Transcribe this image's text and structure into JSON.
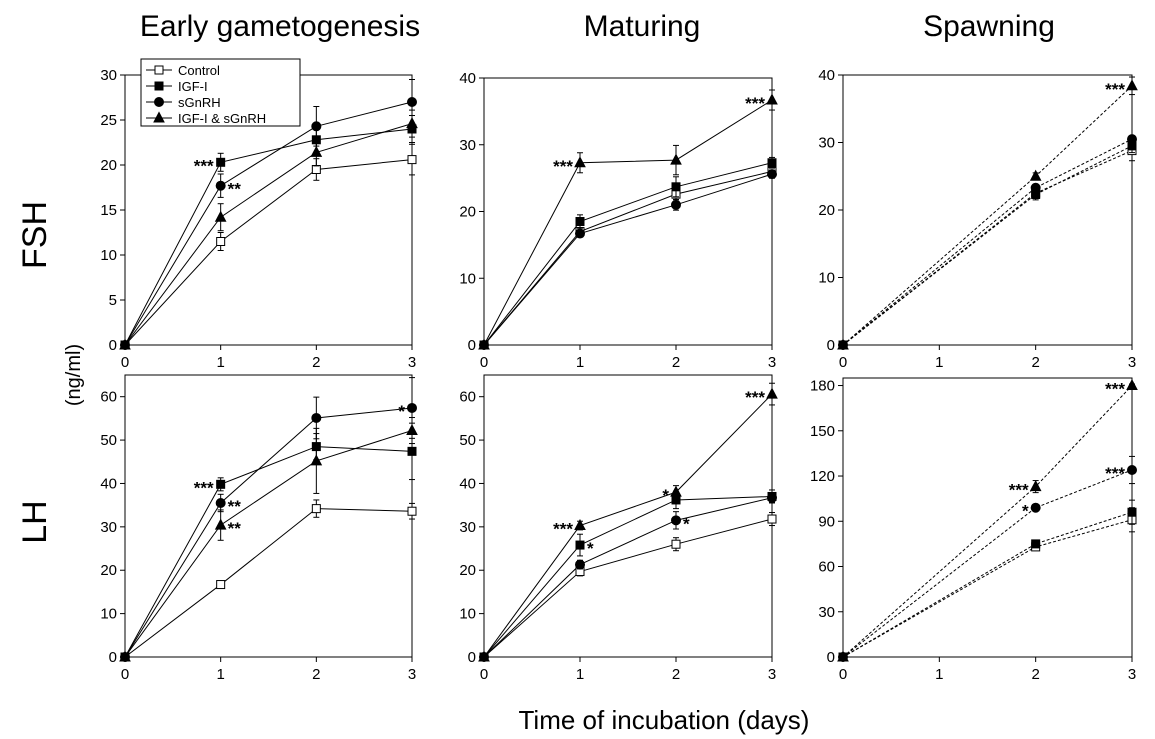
{
  "figure": {
    "column_titles": [
      "Early gametogenesis",
      "Maturing",
      "Spawning"
    ],
    "row_titles": [
      "FSH",
      "LH"
    ],
    "ylabel": "(ng/ml)",
    "xlabel": "Time of incubation (days)"
  },
  "legend": {
    "entries": [
      {
        "label": "Control",
        "marker": "open-square"
      },
      {
        "label": "IGF-I",
        "marker": "filled-square"
      },
      {
        "label": "sGnRH",
        "marker": "filled-circle"
      },
      {
        "label": "IGF-I & sGnRH",
        "marker": "filled-triangle"
      }
    ]
  },
  "chart_data": [
    {
      "type": "line",
      "panel": "FSH - Early gametogenesis",
      "x": [
        0,
        1,
        2,
        3
      ],
      "xlim": [
        0,
        3
      ],
      "ylim": [
        0,
        30
      ],
      "yticks": [
        0,
        5,
        10,
        15,
        20,
        25,
        30
      ],
      "xticks": [
        0,
        1,
        2,
        3
      ],
      "series": [
        {
          "name": "Control",
          "values": [
            0,
            11.5,
            19.5,
            20.6
          ],
          "errors": [
            0,
            1.0,
            1.2,
            1.7
          ]
        },
        {
          "name": "IGF-I",
          "values": [
            0,
            20.3,
            22.8,
            24.0
          ],
          "errors": [
            0,
            1.0,
            1.5,
            1.5
          ]
        },
        {
          "name": "sGnRH",
          "values": [
            0,
            17.7,
            24.3,
            27.0
          ],
          "errors": [
            0,
            1.3,
            2.2,
            2.5
          ]
        },
        {
          "name": "IGF-I & sGnRH",
          "values": [
            0,
            14.2,
            21.4,
            24.6
          ],
          "errors": [
            0,
            1.5,
            1.5,
            1.5
          ]
        }
      ],
      "annotations": [
        {
          "text": "***",
          "x": 1,
          "y": 20.3,
          "side": "left"
        },
        {
          "text": "**",
          "x": 1,
          "y": 17.7,
          "side": "right"
        }
      ]
    },
    {
      "type": "line",
      "panel": "FSH - Maturing",
      "x": [
        0,
        1,
        2,
        3
      ],
      "xlim": [
        0,
        3
      ],
      "ylim": [
        0,
        40
      ],
      "yticks": [
        0,
        10,
        20,
        30,
        40
      ],
      "xticks": [
        0,
        1,
        2,
        3
      ],
      "series": [
        {
          "name": "Control",
          "values": [
            0,
            17.0,
            22.6,
            26.0
          ],
          "errors": [
            0,
            0.6,
            1.0,
            1.0
          ]
        },
        {
          "name": "IGF-I",
          "values": [
            0,
            18.5,
            23.7,
            27.3
          ],
          "errors": [
            0,
            1.0,
            1.5,
            0.8
          ]
        },
        {
          "name": "sGnRH",
          "values": [
            0,
            16.7,
            21.0,
            25.6
          ],
          "errors": [
            0,
            0.5,
            0.8,
            0.6
          ]
        },
        {
          "name": "IGF-I & sGnRH",
          "values": [
            0,
            27.3,
            27.7,
            36.7
          ],
          "errors": [
            0,
            1.5,
            2.2,
            1.5
          ]
        }
      ],
      "annotations": [
        {
          "text": "***",
          "x": 1,
          "y": 27.3,
          "side": "left"
        },
        {
          "text": "***",
          "x": 3,
          "y": 36.7,
          "side": "left"
        }
      ]
    },
    {
      "type": "line",
      "panel": "FSH - Spawning",
      "x": [
        0,
        2,
        3
      ],
      "xlim": [
        0,
        3
      ],
      "ylim": [
        0,
        40
      ],
      "yticks": [
        0,
        10,
        20,
        30,
        40
      ],
      "xticks": [
        0,
        1,
        2,
        3
      ],
      "series": [
        {
          "name": "Control",
          "values": [
            0,
            22.5,
            28.8
          ],
          "errors": [
            0,
            0.8,
            1.5
          ]
        },
        {
          "name": "IGF-I",
          "values": [
            0,
            22.3,
            29.5
          ],
          "errors": [
            0,
            0.8,
            1.0
          ]
        },
        {
          "name": "sGnRH",
          "values": [
            0,
            23.3,
            30.5
          ],
          "errors": [
            0,
            0.5,
            0.5
          ]
        },
        {
          "name": "IGF-I & sGnRH",
          "values": [
            0,
            25.0,
            38.4
          ],
          "errors": [
            0,
            0.5,
            1.3
          ]
        }
      ],
      "annotations": [
        {
          "text": "***",
          "x": 3,
          "y": 38.4,
          "side": "left"
        }
      ]
    },
    {
      "type": "line",
      "panel": "LH - Early gametogenesis",
      "x": [
        0,
        1,
        2,
        3
      ],
      "xlim": [
        0,
        3
      ],
      "ylim": [
        0,
        65
      ],
      "yticks": [
        0,
        10,
        20,
        30,
        40,
        50,
        60
      ],
      "xticks": [
        0,
        1,
        2,
        3
      ],
      "series": [
        {
          "name": "Control",
          "values": [
            0,
            16.7,
            34.2,
            33.6
          ],
          "errors": [
            0,
            0.5,
            2.0,
            1.8
          ]
        },
        {
          "name": "IGF-I",
          "values": [
            0,
            39.8,
            48.5,
            47.4
          ],
          "errors": [
            0,
            1.5,
            3.0,
            6.5
          ]
        },
        {
          "name": "sGnRH",
          "values": [
            0,
            35.5,
            55.1,
            57.4
          ],
          "errors": [
            0,
            2.0,
            4.8,
            7.0
          ]
        },
        {
          "name": "IGF-I & sGnRH",
          "values": [
            0,
            30.4,
            45.2,
            52.2
          ],
          "errors": [
            0,
            3.5,
            7.5,
            3.0
          ]
        }
      ],
      "annotations": [
        {
          "text": "***",
          "x": 1,
          "y": 39.8,
          "side": "left"
        },
        {
          "text": "**",
          "x": 1,
          "y": 35.5,
          "side": "right"
        },
        {
          "text": "**",
          "x": 1,
          "y": 30.4,
          "side": "right"
        },
        {
          "text": "*",
          "x": 3,
          "y": 57.4,
          "side": "left"
        }
      ]
    },
    {
      "type": "line",
      "panel": "LH - Maturing",
      "x": [
        0,
        1,
        2,
        3
      ],
      "xlim": [
        0,
        3
      ],
      "ylim": [
        0,
        65
      ],
      "yticks": [
        0,
        10,
        20,
        30,
        40,
        50,
        60
      ],
      "xticks": [
        0,
        1,
        2,
        3
      ],
      "series": [
        {
          "name": "Control",
          "values": [
            0,
            19.7,
            26.0,
            31.8
          ],
          "errors": [
            0,
            1.0,
            1.5,
            1.5
          ]
        },
        {
          "name": "IGF-I",
          "values": [
            0,
            25.8,
            36.2,
            37.0
          ],
          "errors": [
            0,
            2.5,
            2.0,
            1.5
          ]
        },
        {
          "name": "sGnRH",
          "values": [
            0,
            21.3,
            31.5,
            36.7
          ],
          "errors": [
            0,
            1.0,
            2.0,
            1.0
          ]
        },
        {
          "name": "IGF-I & sGnRH",
          "values": [
            0,
            30.3,
            38.0,
            60.6
          ],
          "errors": [
            0,
            1.0,
            1.5,
            2.5
          ]
        }
      ],
      "annotations": [
        {
          "text": "***",
          "x": 1,
          "y": 30.3,
          "side": "left"
        },
        {
          "text": "*",
          "x": 1,
          "y": 25.8,
          "side": "right"
        },
        {
          "text": "*",
          "x": 2,
          "y": 38.0,
          "side": "left"
        },
        {
          "text": "*",
          "x": 2,
          "y": 31.5,
          "side": "right"
        },
        {
          "text": "***",
          "x": 3,
          "y": 60.6,
          "side": "left"
        }
      ]
    },
    {
      "type": "line",
      "panel": "LH - Spawning",
      "x": [
        0,
        2,
        3
      ],
      "xlim": [
        0,
        3
      ],
      "ylim": [
        0,
        185
      ],
      "yticks": [
        0,
        30,
        60,
        90,
        120,
        150,
        180
      ],
      "xticks": [
        0,
        1,
        2,
        3
      ],
      "series": [
        {
          "name": "Control",
          "values": [
            0,
            73,
            91
          ],
          "errors": [
            0,
            2,
            8
          ]
        },
        {
          "name": "IGF-I",
          "values": [
            0,
            75,
            96
          ],
          "errors": [
            0,
            2,
            8
          ]
        },
        {
          "name": "sGnRH",
          "values": [
            0,
            99,
            124
          ],
          "errors": [
            0,
            2,
            9
          ]
        },
        {
          "name": "IGF-I & sGnRH",
          "values": [
            0,
            113,
            180
          ],
          "errors": [
            0,
            4,
            1
          ]
        }
      ],
      "annotations": [
        {
          "text": "***",
          "x": 2,
          "y": 113,
          "side": "left"
        },
        {
          "text": "*",
          "x": 2,
          "y": 99,
          "side": "left"
        },
        {
          "text": "***",
          "x": 3,
          "y": 180,
          "side": "left"
        },
        {
          "text": "***",
          "x": 3,
          "y": 124,
          "side": "left"
        }
      ]
    }
  ]
}
